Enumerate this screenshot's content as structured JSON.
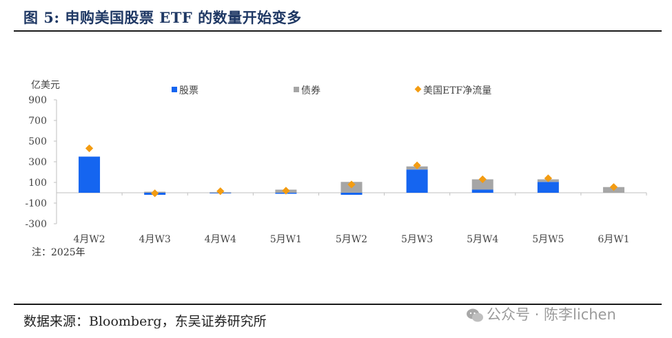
{
  "title": "图 5:  申购美国股票 ETF 的数量开始变多",
  "note": "注：2025年",
  "source": "数据来源：Bloomberg，东吴证券研究所",
  "watermark": "公众号 · 陈李lichen",
  "colors": {
    "stock": "#1565f0",
    "bond": "#a6a6a6",
    "net": "#f39c12",
    "title": "#1f3864"
  },
  "chart_data": {
    "type": "bar",
    "stacked": true,
    "ylabel": "亿美元",
    "ylim": [
      -300,
      900
    ],
    "yticks": [
      -300,
      -100,
      100,
      300,
      500,
      700,
      900
    ],
    "categories": [
      "4月W2",
      "4月W3",
      "4月W4",
      "5月W1",
      "5月W2",
      "5月W3",
      "5月W4",
      "5月W5",
      "6月W1"
    ],
    "series": [
      {
        "name": "股票",
        "kind": "bar",
        "values": [
          350,
          -20,
          -5,
          -10,
          -20,
          225,
          30,
          105,
          0
        ]
      },
      {
        "name": "债券",
        "kind": "bar",
        "values": [
          0,
          10,
          5,
          30,
          105,
          30,
          100,
          25,
          55
        ]
      },
      {
        "name": "美国ETF净流量",
        "kind": "marker",
        "values": [
          430,
          -5,
          15,
          20,
          80,
          265,
          130,
          140,
          55
        ]
      }
    ],
    "legend_position": "top"
  }
}
